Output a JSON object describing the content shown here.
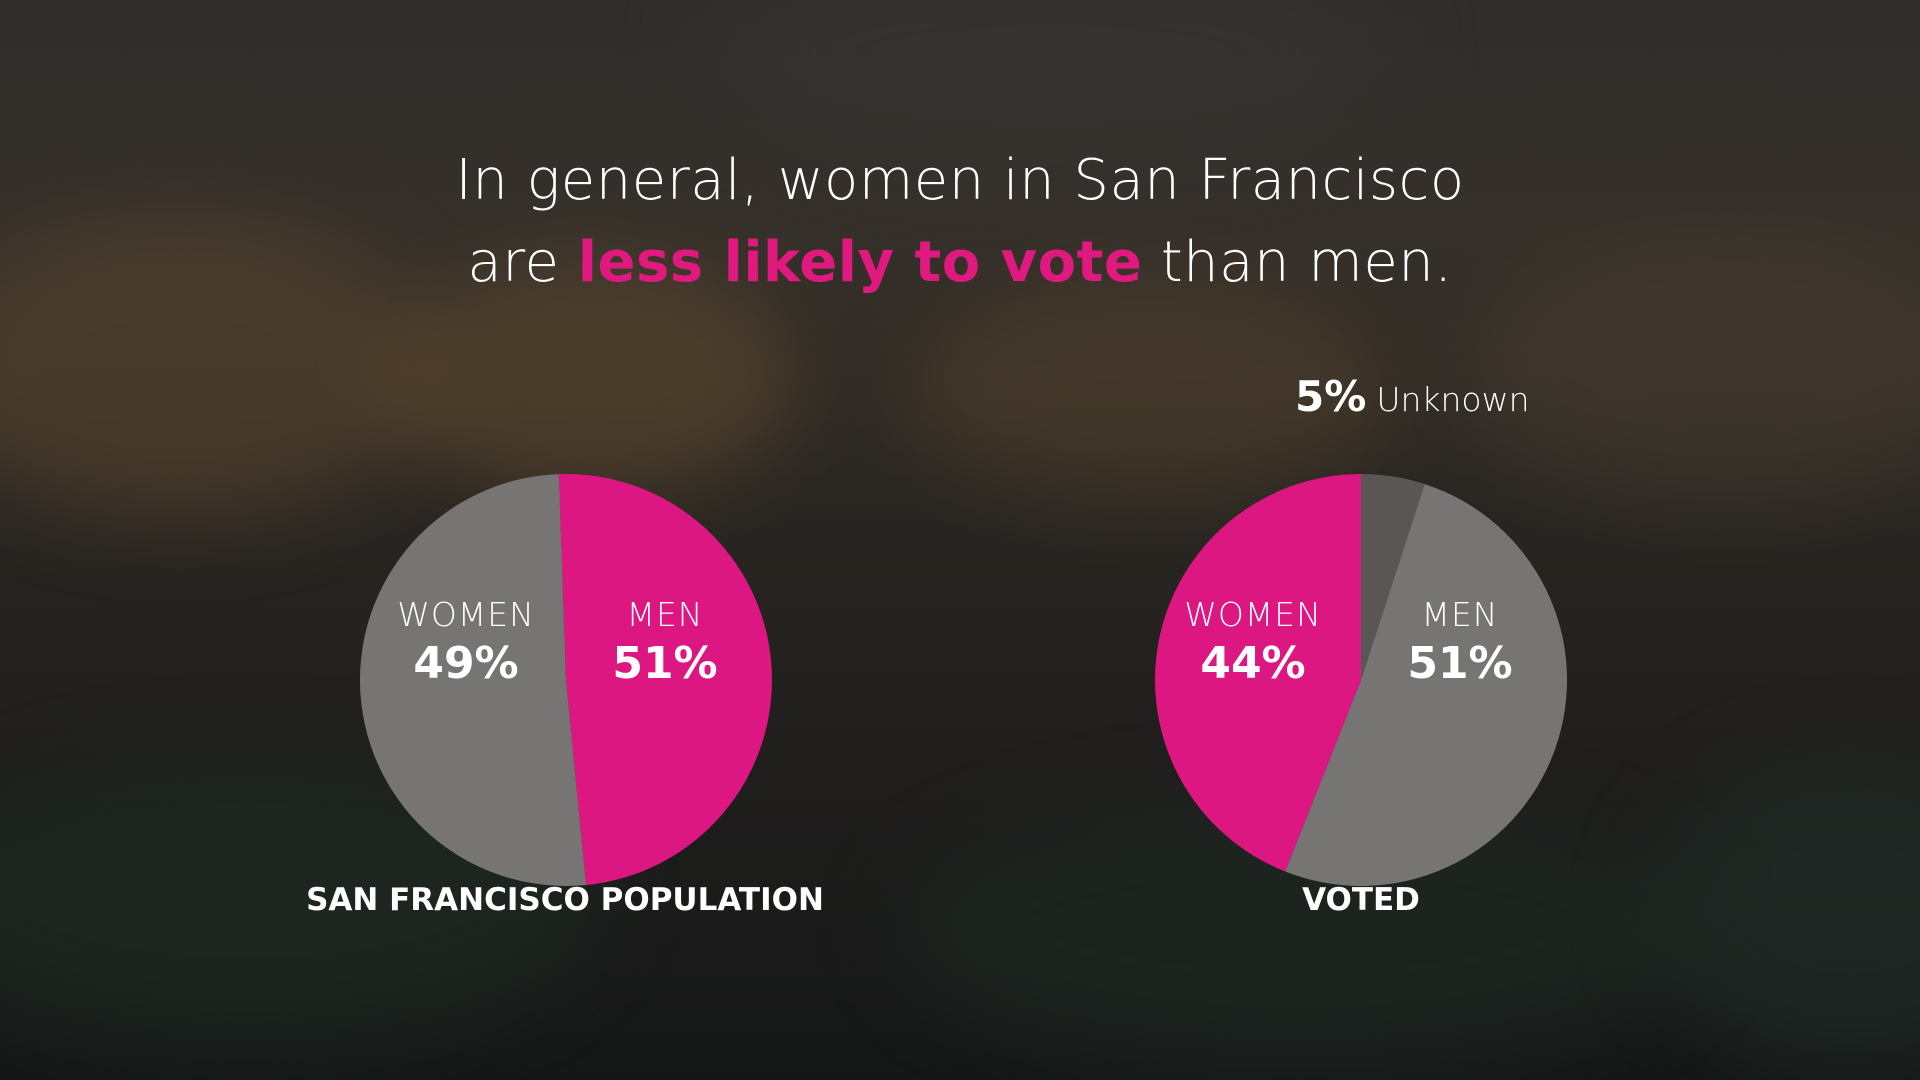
{
  "title": {
    "line1": "In general, women in San Francisco",
    "line2_pre": "are ",
    "line2_highlight": "less likely to vote",
    "line2_post": " than men."
  },
  "colors": {
    "women": "#dc1781",
    "men": "#767574",
    "unknown": "#5a5654",
    "highlight": "#e0197f"
  },
  "chart_data": [
    {
      "type": "pie",
      "caption": "SAN FRANCISCO POPULATION",
      "slices": [
        {
          "name": "WOMEN",
          "value": 49,
          "label": "49%",
          "color": "#dc1781"
        },
        {
          "name": "MEN",
          "value": 51,
          "label": "51%",
          "color": "#767574"
        }
      ]
    },
    {
      "type": "pie",
      "caption": "VOTED",
      "slices": [
        {
          "name": "Unknown",
          "value": 5,
          "label": "5%",
          "color": "#5a5654"
        },
        {
          "name": "MEN",
          "value": 51,
          "label": "51%",
          "color": "#767574"
        },
        {
          "name": "WOMEN",
          "value": 44,
          "label": "44%",
          "color": "#dc1781"
        }
      ]
    }
  ]
}
